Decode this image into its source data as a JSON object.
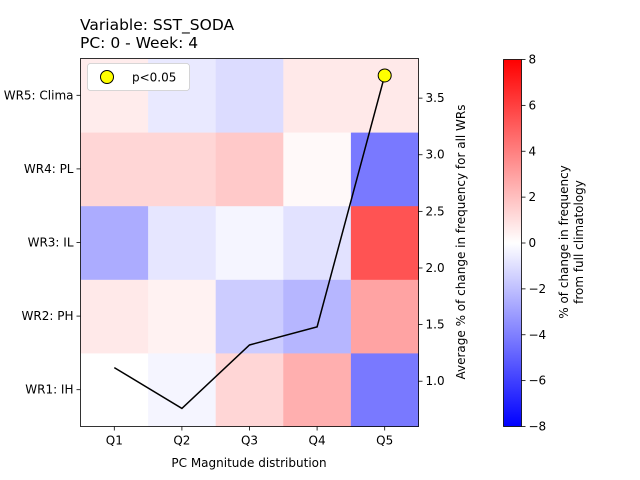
{
  "chart_data": {
    "type": "heatmap",
    "title_line1": "Variable: SST_SODA",
    "title_line2": "PC: 0 - Week: 4",
    "xlabel": "PC Magnitude distribution",
    "ylabel_right": "Average % of change in frequency for all WRs",
    "colorbar_label_line1": "% of change in frequency",
    "colorbar_label_line2": "from full climatology",
    "x_categories": [
      "Q1",
      "Q2",
      "Q3",
      "Q4",
      "Q5"
    ],
    "y_categories": [
      "WR1: IH",
      "WR2: PH",
      "WR3: IL",
      "WR4: PL",
      "WR5: Clima"
    ],
    "values": [
      [
        0.0,
        -0.3,
        1.3,
        2.5,
        -4.2
      ],
      [
        0.7,
        0.4,
        -1.6,
        -2.3,
        2.9
      ],
      [
        -2.6,
        -0.8,
        -0.3,
        -0.9,
        5.4
      ],
      [
        1.3,
        1.3,
        1.7,
        0.2,
        -4.2
      ],
      [
        0.6,
        -0.7,
        -1.1,
        0.7,
        0.7
      ]
    ],
    "color_range": [
      -8,
      8
    ],
    "colormap": "bwr",
    "colorbar_ticks": [
      -8,
      -6,
      -4,
      -2,
      0,
      2,
      4,
      6,
      8
    ],
    "line_series": {
      "x": [
        "Q1",
        "Q2",
        "Q3",
        "Q4",
        "Q5"
      ],
      "y": [
        1.12,
        0.76,
        1.32,
        1.48,
        3.7
      ],
      "color": "#000000"
    },
    "y2_range": [
      0.6,
      3.85
    ],
    "y2_ticks": [
      1.0,
      1.5,
      2.0,
      2.5,
      3.0,
      3.5
    ],
    "significant_points": [
      {
        "x": "Q5",
        "y": 3.7
      }
    ],
    "marker_color": "#ffff00",
    "legend": {
      "label": "p<0.05",
      "position": "top-left"
    }
  }
}
